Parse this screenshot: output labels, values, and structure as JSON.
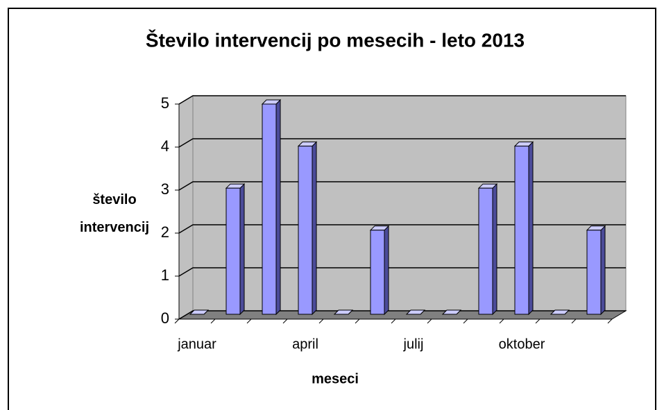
{
  "chart_data": {
    "type": "bar",
    "title": "Število intervencij po mesecih - leto 2013",
    "x_label": "meseci",
    "y_label": "število intervencij",
    "categories": [
      "januar",
      null,
      null,
      "april",
      null,
      null,
      "julij",
      null,
      null,
      "oktober",
      null,
      null
    ],
    "values": [
      0,
      3,
      5,
      4,
      0,
      2,
      0,
      0,
      3,
      4,
      0,
      2
    ],
    "color": "#9999ff",
    "ylim": [
      0,
      5
    ],
    "yticks": [
      0,
      1,
      2,
      3,
      4,
      5
    ],
    "grid": true
  }
}
